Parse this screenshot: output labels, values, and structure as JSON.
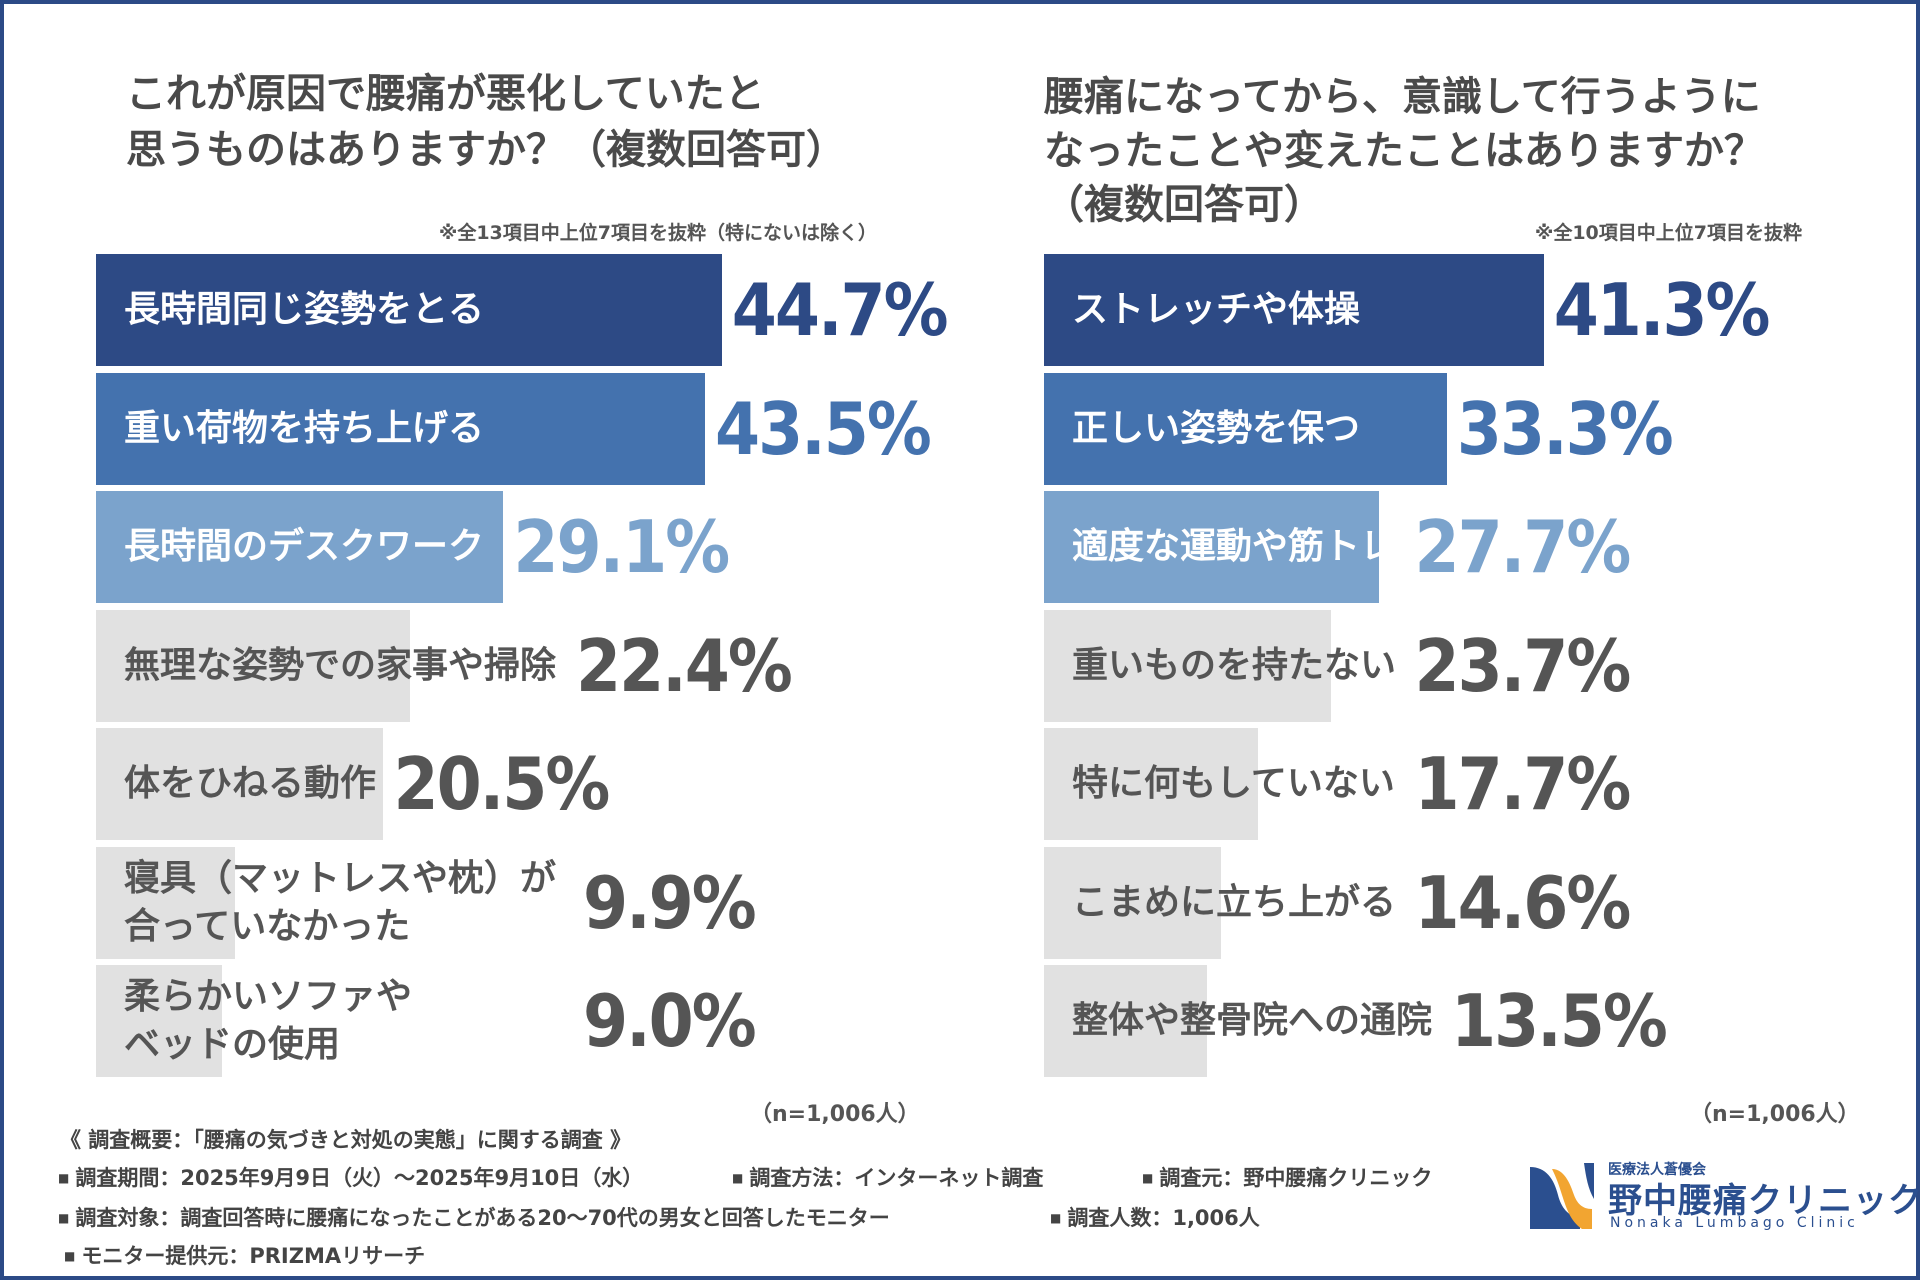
{
  "colors": {
    "frame": "#2c4a86",
    "rank1": "#2d4a85",
    "rank2": "#4472ae",
    "rank3": "#7ba3cc",
    "rest": "#e1e1e1",
    "rest_text": "#555555",
    "white": "#ffffff"
  },
  "chart_data": [
    {
      "type": "bar",
      "orientation": "horizontal",
      "title": "これが原因で腰痛が悪化していたと\n思うものはありますか？（複数回答可）",
      "note": "※全13項目中上位7項目を抜粋（特にないは除く）",
      "categories": [
        "長時間同じ姿勢をとる",
        "重い荷物を持ち上げる",
        "長時間のデスクワーク",
        "無理な姿勢での家事や掃除",
        "体をひねる動作",
        "寝具（マットレスや枕）が\n合っていなかった",
        "柔らかいソファや\nベッドの使用"
      ],
      "values": [
        44.7,
        43.5,
        29.1,
        22.4,
        20.5,
        9.9,
        9.0
      ],
      "value_labels": [
        "44.7%",
        "43.5%",
        "29.1%",
        "22.4%",
        "20.5%",
        "9.9%",
        "9.0%"
      ],
      "n_label": "（n=1,006人）",
      "unit": "%"
    },
    {
      "type": "bar",
      "orientation": "horizontal",
      "title": "腰痛になってから、意識して行うように\nなったことや変えたことはありますか？\n（複数回答可）",
      "note": "※全10項目中上位7項目を抜粋",
      "categories": [
        "ストレッチや体操",
        "正しい姿勢を保つ",
        "適度な運動や筋トレ",
        "重いものを持たない",
        "特に何もしていない",
        "こまめに立ち上がる",
        "整体や整骨院への通院"
      ],
      "values": [
        41.3,
        33.3,
        27.7,
        23.7,
        17.7,
        14.6,
        13.5
      ],
      "value_labels": [
        "41.3%",
        "33.3%",
        "27.7%",
        "23.7%",
        "17.7%",
        "14.6%",
        "13.5%"
      ],
      "n_label": "（n=1,006人）",
      "unit": "%"
    }
  ],
  "footer": {
    "overview": "《 調査概要：「腰痛の気づきと対処の実態」に関する調査 》",
    "period": "調査期間：2025年9月9日（火）〜2025年9月10日（水）",
    "method": "調査方法：インターネット調査",
    "source": "調査元：野中腰痛クリニック",
    "target": "調査対象：調査回答時に腰痛になったことがある20〜70代の男女と回答したモニター",
    "count": "調査人数：1,006人",
    "provider": "モニター提供元：PRIZMAリサーチ",
    "bullet": "■"
  },
  "logo": {
    "org": "医療法人蒼優会",
    "name": "野中腰痛クリニック",
    "en": "Nonaka Lumbago Clinic"
  }
}
